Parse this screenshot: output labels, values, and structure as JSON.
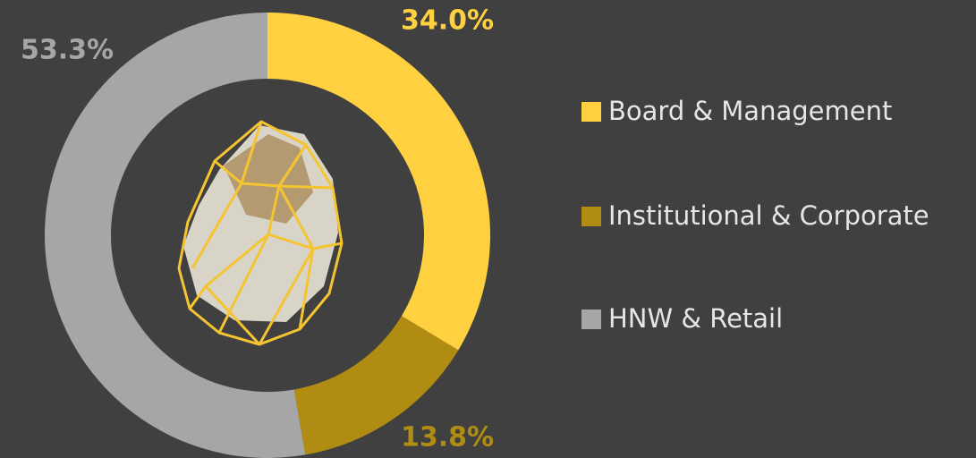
{
  "chart_data": {
    "type": "donut",
    "categories": [
      "Board & Management",
      "Institutional & Corporate",
      "HNW & Retail"
    ],
    "values": [
      34.0,
      13.8,
      53.3
    ],
    "value_labels": [
      "34.0%",
      "13.8%",
      "53.3%"
    ],
    "colors": [
      "#ffd03f",
      "#b08d12",
      "#a6a6a6"
    ]
  }
}
